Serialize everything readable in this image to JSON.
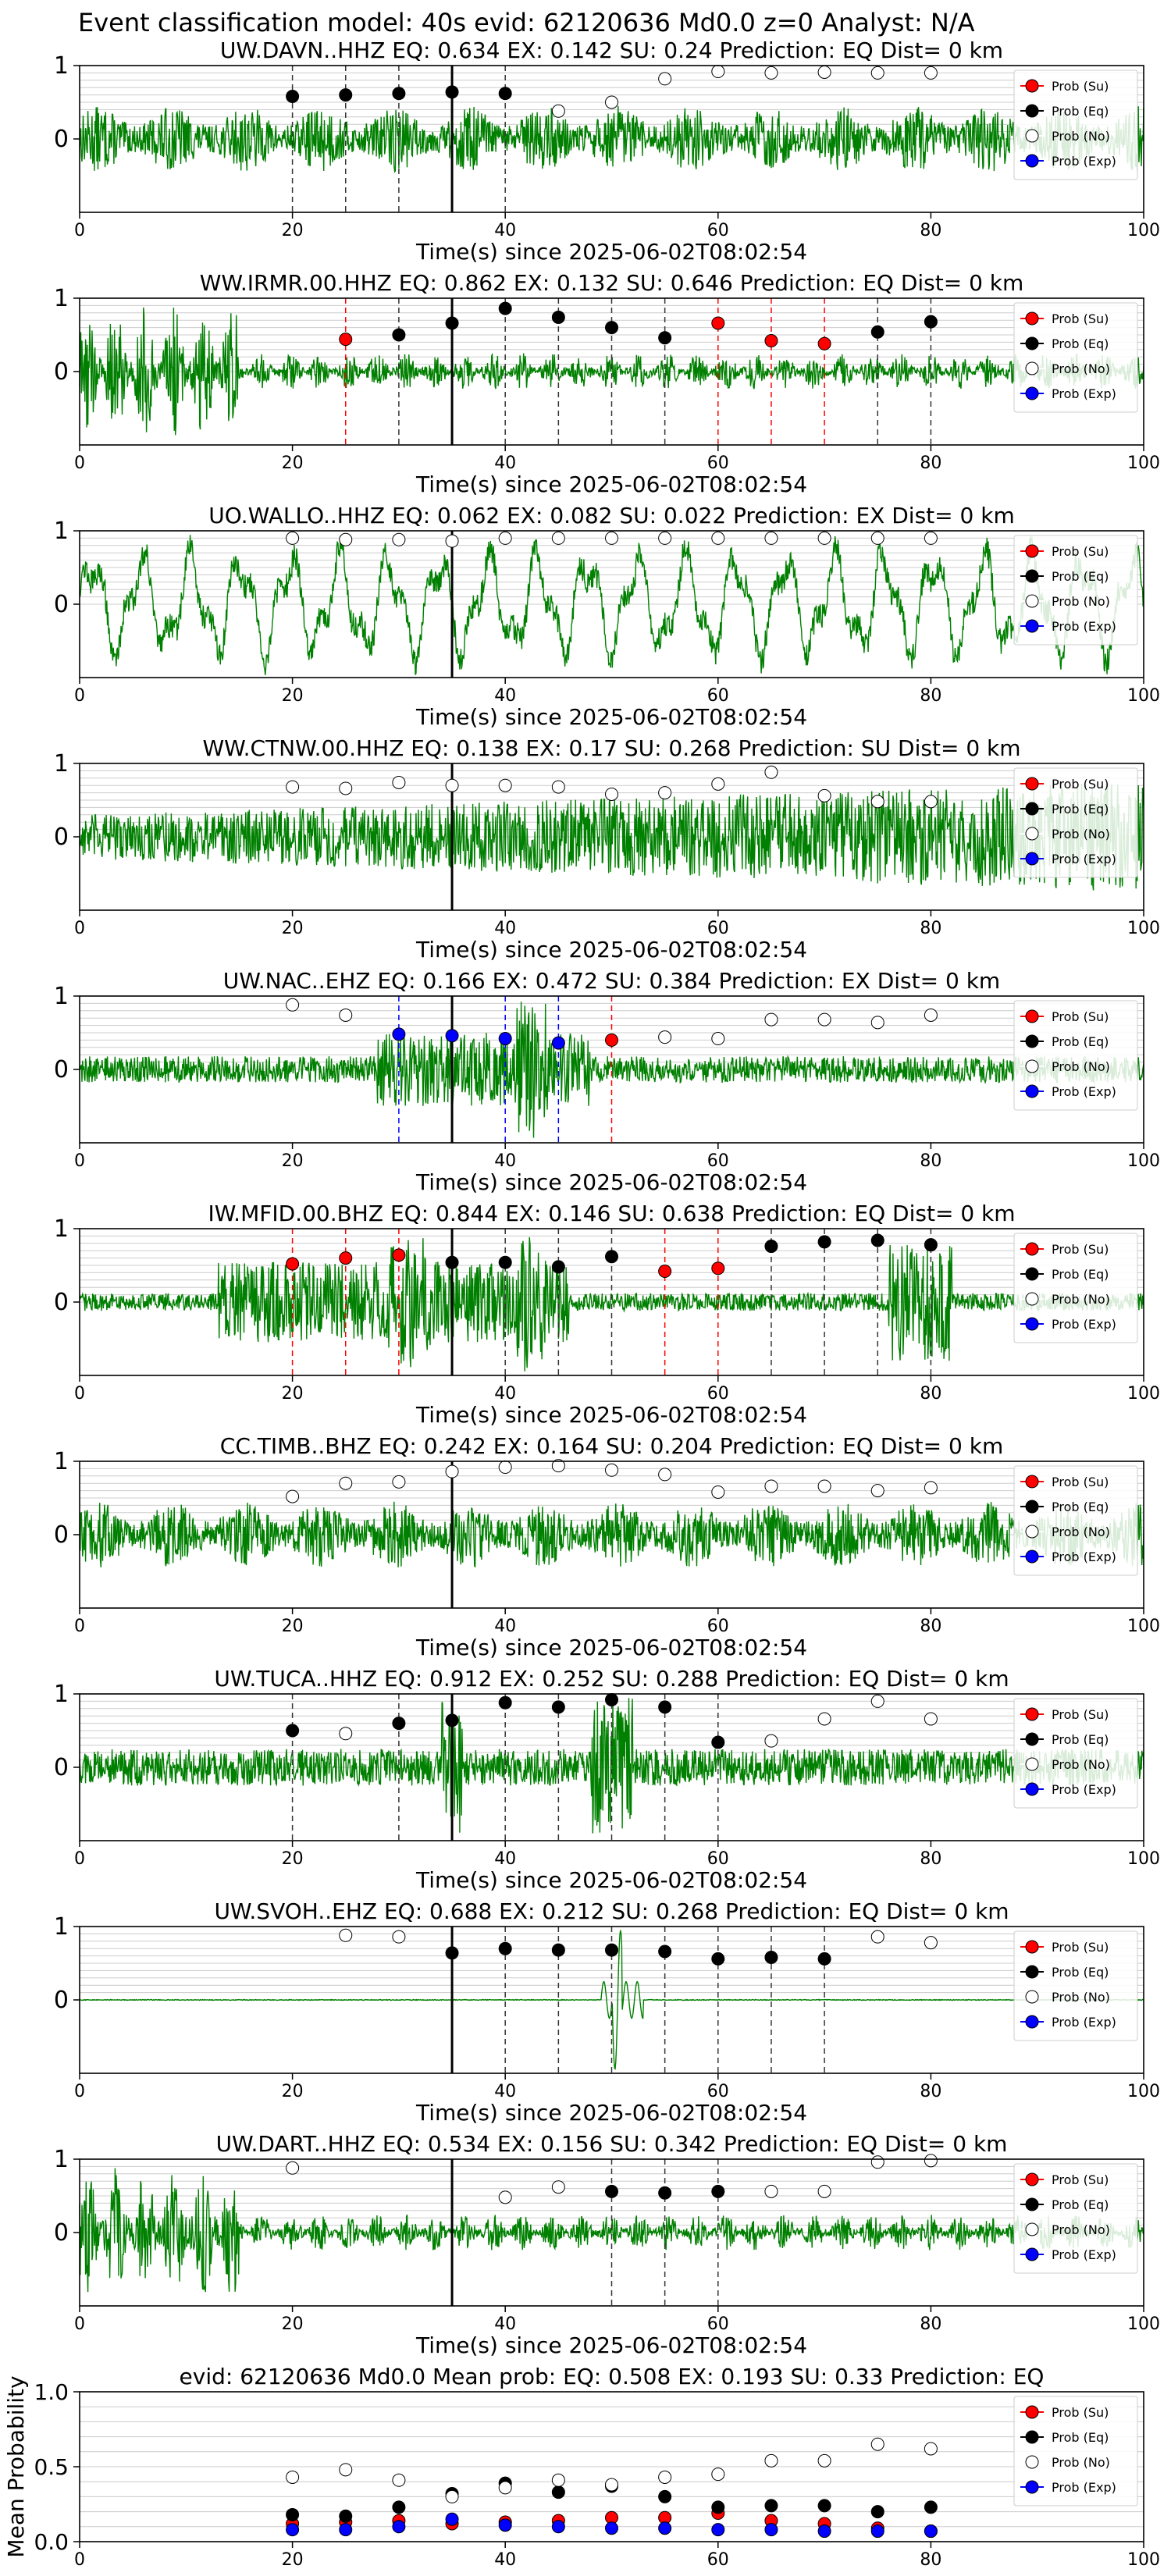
{
  "suptitle": "Event classification model: 40s evid: 62120636 Md0.0 z=0 Analyst: N/A",
  "xlabel": "Time(s) since 2025-06-02T08:02:54",
  "legend": {
    "su": "Prob (Su)",
    "eq": "Prob (Eq)",
    "no": "Prob (No)",
    "exp": "Prob (Exp)"
  },
  "colors": {
    "su": "#ff0000",
    "eq": "#000000",
    "no": "#ffffff",
    "exp": "#0000ff",
    "trace": "#008000",
    "grid": "#cccccc"
  },
  "chart_data": [
    {
      "type": "line",
      "title": "UW.DAVN..HHZ   EQ: 0.634  EX: 0.142  SU: 0.24   Prediction: EQ    Dist= 0 km",
      "xlim": [
        0,
        100
      ],
      "ylim": [
        -1,
        1
      ],
      "xticks": [
        0,
        20,
        40,
        60,
        80,
        100
      ],
      "yticks": [
        0,
        1
      ],
      "pick_time": 35,
      "trace_style": "noise",
      "points": [
        [
          20,
          "eq",
          0.58
        ],
        [
          25,
          "eq",
          0.6
        ],
        [
          30,
          "eq",
          0.62
        ],
        [
          35,
          "eq",
          0.64
        ],
        [
          40,
          "eq",
          0.62
        ],
        [
          45,
          "no",
          0.38
        ],
        [
          50,
          "no",
          0.5
        ],
        [
          55,
          "no",
          0.82
        ],
        [
          60,
          "no",
          0.92
        ],
        [
          65,
          "no",
          0.9
        ],
        [
          70,
          "no",
          0.91
        ],
        [
          75,
          "no",
          0.9
        ],
        [
          80,
          "no",
          0.9
        ]
      ]
    },
    {
      "type": "line",
      "title": "WW.IRMR.00.HHZ   EQ: 0.862  EX: 0.132  SU: 0.646   Prediction: EQ    Dist= 0 km",
      "xlim": [
        0,
        100
      ],
      "ylim": [
        -1,
        1
      ],
      "xticks": [
        0,
        20,
        40,
        60,
        80,
        100
      ],
      "yticks": [
        0,
        1
      ],
      "pick_time": 35,
      "trace_style": "early-burst",
      "points": [
        [
          25,
          "su",
          0.44
        ],
        [
          30,
          "eq",
          0.5
        ],
        [
          35,
          "eq",
          0.66
        ],
        [
          40,
          "eq",
          0.86
        ],
        [
          45,
          "eq",
          0.74
        ],
        [
          50,
          "eq",
          0.6
        ],
        [
          55,
          "eq",
          0.46
        ],
        [
          60,
          "su",
          0.66
        ],
        [
          65,
          "su",
          0.42
        ],
        [
          70,
          "su",
          0.38
        ],
        [
          75,
          "eq",
          0.54
        ],
        [
          80,
          "eq",
          0.68
        ]
      ]
    },
    {
      "type": "line",
      "title": "UO.WALLO..HHZ   EQ: 0.062  EX: 0.082  SU: 0.022   Prediction: EX    Dist= 0 km",
      "xlim": [
        0,
        100
      ],
      "ylim": [
        -1,
        1
      ],
      "xticks": [
        0,
        20,
        40,
        60,
        80,
        100
      ],
      "yticks": [
        0,
        1
      ],
      "pick_time": 35,
      "trace_style": "waves",
      "points": [
        [
          20,
          "no",
          0.9
        ],
        [
          25,
          "no",
          0.88
        ],
        [
          30,
          "no",
          0.88
        ],
        [
          35,
          "no",
          0.86
        ],
        [
          40,
          "no",
          0.9
        ],
        [
          45,
          "no",
          0.9
        ],
        [
          50,
          "no",
          0.9
        ],
        [
          55,
          "no",
          0.9
        ],
        [
          60,
          "no",
          0.9
        ],
        [
          65,
          "no",
          0.9
        ],
        [
          70,
          "no",
          0.9
        ],
        [
          75,
          "no",
          0.9
        ],
        [
          80,
          "no",
          0.9
        ]
      ]
    },
    {
      "type": "line",
      "title": "WW.CTNW.00.HHZ   EQ: 0.138  EX: 0.17  SU: 0.268   Prediction: SU    Dist= 0 km",
      "xlim": [
        0,
        100
      ],
      "ylim": [
        -1,
        1
      ],
      "xticks": [
        0,
        20,
        40,
        60,
        80,
        100
      ],
      "yticks": [
        0,
        1
      ],
      "pick_time": 35,
      "trace_style": "noise-rising",
      "points": [
        [
          20,
          "no",
          0.68
        ],
        [
          25,
          "no",
          0.66
        ],
        [
          30,
          "no",
          0.74
        ],
        [
          35,
          "no",
          0.7
        ],
        [
          40,
          "no",
          0.7
        ],
        [
          45,
          "no",
          0.68
        ],
        [
          50,
          "no",
          0.58
        ],
        [
          55,
          "no",
          0.6
        ],
        [
          60,
          "no",
          0.72
        ],
        [
          65,
          "no",
          0.88
        ],
        [
          70,
          "no",
          0.56
        ],
        [
          75,
          "no",
          0.48
        ],
        [
          80,
          "no",
          0.48
        ]
      ]
    },
    {
      "type": "line",
      "title": "UW.NAC..EHZ   EQ: 0.166  EX: 0.472  SU: 0.384   Prediction: EX    Dist= 0 km",
      "xlim": [
        0,
        100
      ],
      "ylim": [
        -1,
        1
      ],
      "xticks": [
        0,
        20,
        40,
        60,
        80,
        100
      ],
      "yticks": [
        0,
        1
      ],
      "pick_time": 35,
      "trace_style": "quiet-burst",
      "points": [
        [
          20,
          "no",
          0.88
        ],
        [
          25,
          "no",
          0.74
        ],
        [
          30,
          "exp",
          0.48
        ],
        [
          35,
          "exp",
          0.46
        ],
        [
          40,
          "exp",
          0.42
        ],
        [
          45,
          "exp",
          0.36
        ],
        [
          50,
          "su",
          0.4
        ],
        [
          55,
          "no",
          0.44
        ],
        [
          60,
          "no",
          0.42
        ],
        [
          65,
          "no",
          0.68
        ],
        [
          70,
          "no",
          0.68
        ],
        [
          75,
          "no",
          0.64
        ],
        [
          80,
          "no",
          0.74
        ]
      ]
    },
    {
      "type": "line",
      "title": "IW.MFID.00.BHZ   EQ: 0.844  EX: 0.146  SU: 0.638   Prediction: EQ    Dist= 0 km",
      "xlim": [
        0,
        100
      ],
      "ylim": [
        -1,
        1
      ],
      "xticks": [
        0,
        20,
        40,
        60,
        80,
        100
      ],
      "yticks": [
        0,
        1
      ],
      "pick_time": 35,
      "trace_style": "quake",
      "points": [
        [
          20,
          "su",
          0.52
        ],
        [
          25,
          "su",
          0.6
        ],
        [
          30,
          "su",
          0.64
        ],
        [
          35,
          "eq",
          0.54
        ],
        [
          40,
          "eq",
          0.54
        ],
        [
          45,
          "eq",
          0.48
        ],
        [
          50,
          "eq",
          0.62
        ],
        [
          55,
          "su",
          0.42
        ],
        [
          60,
          "su",
          0.46
        ],
        [
          65,
          "eq",
          0.76
        ],
        [
          70,
          "eq",
          0.82
        ],
        [
          75,
          "eq",
          0.84
        ],
        [
          80,
          "eq",
          0.78
        ]
      ]
    },
    {
      "type": "line",
      "title": "CC.TIMB..BHZ   EQ: 0.242  EX: 0.164  SU: 0.204   Prediction: EQ    Dist= 0 km",
      "xlim": [
        0,
        100
      ],
      "ylim": [
        -1,
        1
      ],
      "xticks": [
        0,
        20,
        40,
        60,
        80,
        100
      ],
      "yticks": [
        0,
        1
      ],
      "pick_time": 35,
      "trace_style": "noise",
      "points": [
        [
          20,
          "no",
          0.52
        ],
        [
          25,
          "no",
          0.7
        ],
        [
          30,
          "no",
          0.72
        ],
        [
          35,
          "no",
          0.86
        ],
        [
          40,
          "no",
          0.92
        ],
        [
          45,
          "no",
          0.94
        ],
        [
          50,
          "no",
          0.88
        ],
        [
          55,
          "no",
          0.82
        ],
        [
          60,
          "no",
          0.58
        ],
        [
          65,
          "no",
          0.66
        ],
        [
          70,
          "no",
          0.66
        ],
        [
          75,
          "no",
          0.6
        ],
        [
          80,
          "no",
          0.64
        ]
      ]
    },
    {
      "type": "line",
      "title": "UW.TUCA..HHZ   EQ: 0.912  EX: 0.252  SU: 0.288   Prediction: EQ    Dist= 0 km",
      "xlim": [
        0,
        100
      ],
      "ylim": [
        -1,
        1
      ],
      "xticks": [
        0,
        20,
        40,
        60,
        80,
        100
      ],
      "yticks": [
        0,
        1
      ],
      "pick_time": 35,
      "trace_style": "spikes",
      "points": [
        [
          20,
          "eq",
          0.5
        ],
        [
          25,
          "no",
          0.46
        ],
        [
          30,
          "eq",
          0.6
        ],
        [
          35,
          "eq",
          0.64
        ],
        [
          40,
          "eq",
          0.88
        ],
        [
          45,
          "eq",
          0.82
        ],
        [
          50,
          "eq",
          0.92
        ],
        [
          55,
          "eq",
          0.82
        ],
        [
          60,
          "eq",
          0.34
        ],
        [
          65,
          "no",
          0.36
        ],
        [
          70,
          "no",
          0.66
        ],
        [
          75,
          "no",
          0.9
        ],
        [
          80,
          "no",
          0.66
        ]
      ]
    },
    {
      "type": "line",
      "title": "UW.SVOH..EHZ   EQ: 0.688  EX: 0.212  SU: 0.268   Prediction: EQ    Dist= 0 km",
      "xlim": [
        0,
        100
      ],
      "ylim": [
        -1,
        1
      ],
      "xticks": [
        0,
        20,
        40,
        60,
        80,
        100
      ],
      "yticks": [
        0,
        1
      ],
      "pick_time": 35,
      "trace_style": "flat-spike",
      "points": [
        [
          25,
          "no",
          0.88
        ],
        [
          30,
          "no",
          0.86
        ],
        [
          35,
          "eq",
          0.64
        ],
        [
          40,
          "eq",
          0.7
        ],
        [
          45,
          "eq",
          0.68
        ],
        [
          50,
          "eq",
          0.68
        ],
        [
          55,
          "eq",
          0.66
        ],
        [
          60,
          "eq",
          0.56
        ],
        [
          65,
          "eq",
          0.58
        ],
        [
          70,
          "eq",
          0.56
        ],
        [
          75,
          "no",
          0.86
        ],
        [
          80,
          "no",
          0.78
        ]
      ]
    },
    {
      "type": "line",
      "title": "UW.DART..HHZ   EQ: 0.534  EX: 0.156  SU: 0.342   Prediction: EQ    Dist= 0 km",
      "xlim": [
        0,
        100
      ],
      "ylim": [
        -1,
        1
      ],
      "xticks": [
        0,
        20,
        40,
        60,
        80,
        100
      ],
      "yticks": [
        0,
        1
      ],
      "pick_time": 35,
      "trace_style": "early-burst",
      "points": [
        [
          20,
          "no",
          0.88
        ],
        [
          40,
          "no",
          0.48
        ],
        [
          45,
          "no",
          0.62
        ],
        [
          50,
          "eq",
          0.56
        ],
        [
          55,
          "eq",
          0.54
        ],
        [
          60,
          "eq",
          0.56
        ],
        [
          65,
          "no",
          0.56
        ],
        [
          70,
          "no",
          0.56
        ],
        [
          75,
          "no",
          0.96
        ],
        [
          80,
          "no",
          0.98
        ]
      ]
    },
    {
      "type": "scatter",
      "title": "evid: 62120636  Md0.0   Mean prob:    EQ: 0.508  EX: 0.193  SU: 0.33   Prediction: EQ",
      "ylabel": "Mean Probability",
      "xlim": [
        0,
        100
      ],
      "ylim": [
        0,
        1
      ],
      "xticks": [
        0,
        20,
        40,
        60,
        80,
        100
      ],
      "yticks": [
        0.0,
        0.5,
        1.0
      ],
      "x": [
        20,
        25,
        30,
        35,
        40,
        45,
        50,
        55,
        60,
        65,
        70,
        75,
        80
      ],
      "series": [
        {
          "name": "Prob (Su)",
          "key": "su",
          "values": [
            0.12,
            0.13,
            0.14,
            0.12,
            0.13,
            0.14,
            0.16,
            0.16,
            0.19,
            0.14,
            0.12,
            0.09,
            0.07
          ]
        },
        {
          "name": "Prob (Eq)",
          "key": "eq",
          "values": [
            0.18,
            0.17,
            0.23,
            0.32,
            0.39,
            0.33,
            0.37,
            0.3,
            0.23,
            0.24,
            0.24,
            0.2,
            0.23
          ]
        },
        {
          "name": "Prob (No)",
          "key": "no",
          "values": [
            0.43,
            0.48,
            0.41,
            0.3,
            0.36,
            0.41,
            0.38,
            0.43,
            0.45,
            0.54,
            0.54,
            0.65,
            0.62
          ]
        },
        {
          "name": "Prob (Exp)",
          "key": "exp",
          "values": [
            0.08,
            0.08,
            0.1,
            0.15,
            0.11,
            0.1,
            0.09,
            0.09,
            0.08,
            0.08,
            0.07,
            0.07,
            0.07
          ]
        }
      ]
    }
  ]
}
